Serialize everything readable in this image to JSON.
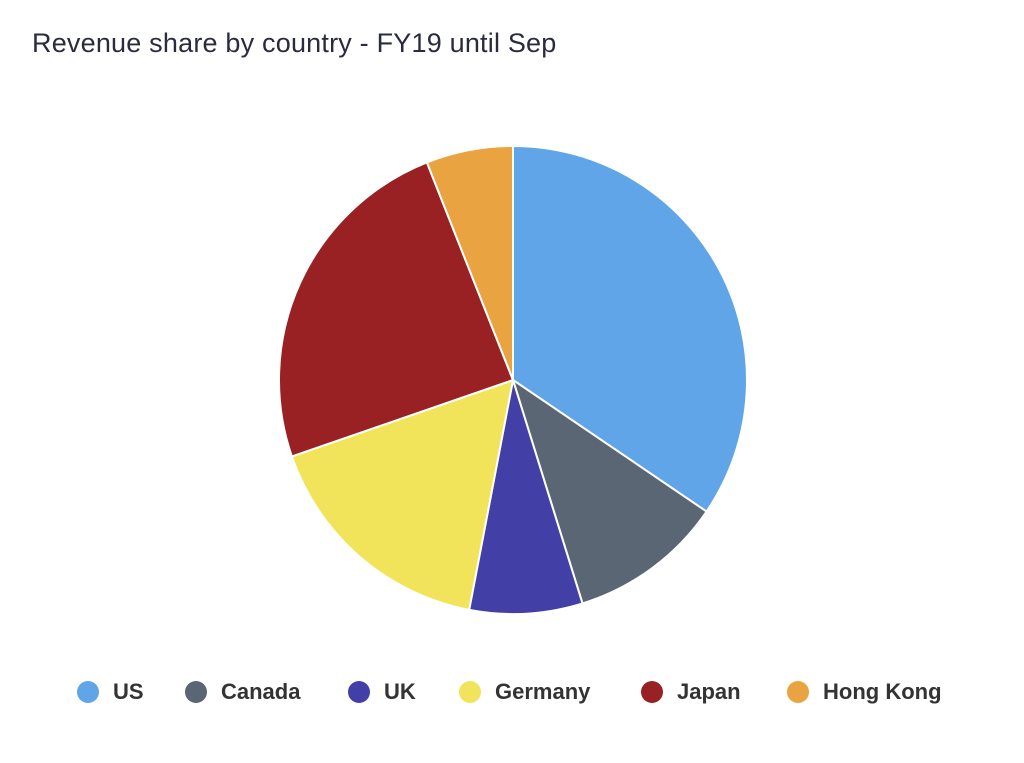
{
  "title": "Revenue share by country - FY19 until Sep",
  "chart_data": {
    "type": "pie",
    "title": "Revenue share by country - FY19 until Sep",
    "categories": [
      "US",
      "Canada",
      "UK",
      "Germany",
      "Japan",
      "Hong Kong"
    ],
    "values": [
      34.5,
      10.7,
      7.8,
      16.7,
      24.3,
      6.0
    ],
    "colors": [
      "#60a5e8",
      "#5a6674",
      "#4240a6",
      "#f2e45a",
      "#992124",
      "#e9a340"
    ],
    "start_angle": "12 o'clock",
    "direction": "clockwise",
    "legend": "bottom"
  }
}
